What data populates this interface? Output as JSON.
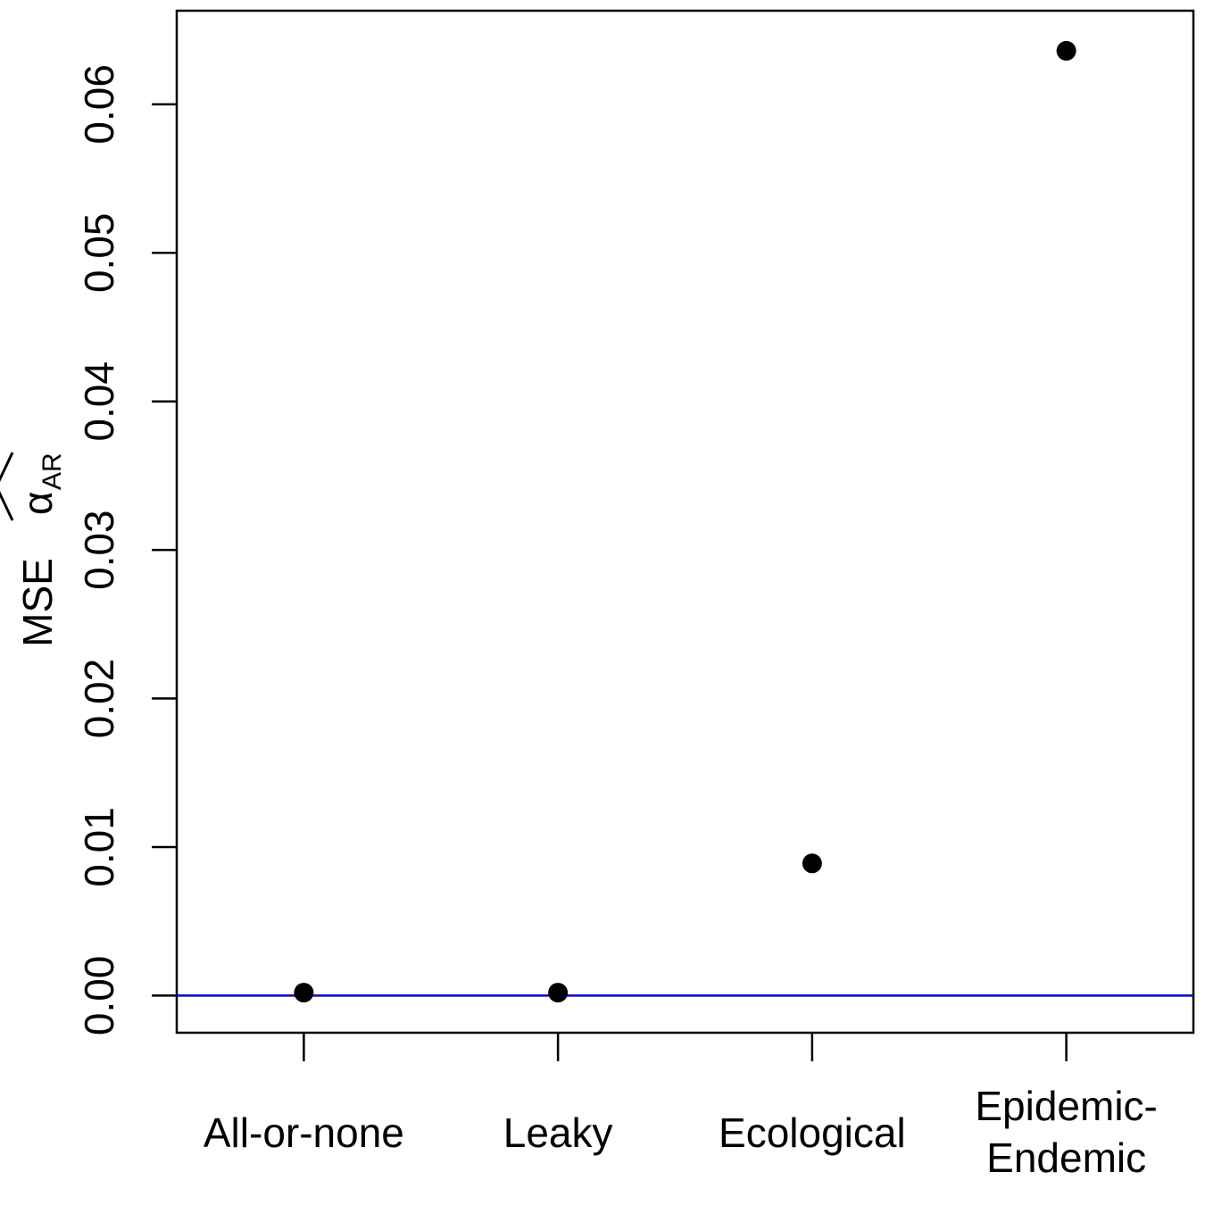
{
  "chart_data": {
    "type": "scatter",
    "title": "",
    "xlabel": "",
    "ylabel": "MSE",
    "ylabel_symbol": "α",
    "ylabel_subscript": "AR",
    "categories": [
      [
        "All-or-none"
      ],
      [
        "Leaky"
      ],
      [
        "Ecological"
      ],
      [
        "Epidemic-",
        "Endemic"
      ]
    ],
    "values": [
      0.0002,
      0.0002,
      0.0089,
      0.0636
    ],
    "ylim": [
      -0.0025,
      0.0663
    ],
    "yticks": [
      0.0,
      0.01,
      0.02,
      0.03,
      0.04,
      0.05,
      0.06
    ],
    "ytick_labels": [
      "0.00",
      "0.01",
      "0.02",
      "0.03",
      "0.04",
      "0.05",
      "0.06"
    ],
    "reference_line": {
      "y": 0,
      "color": "#0000CD"
    },
    "point_color": "#000000",
    "grid": false,
    "legend": "none"
  }
}
